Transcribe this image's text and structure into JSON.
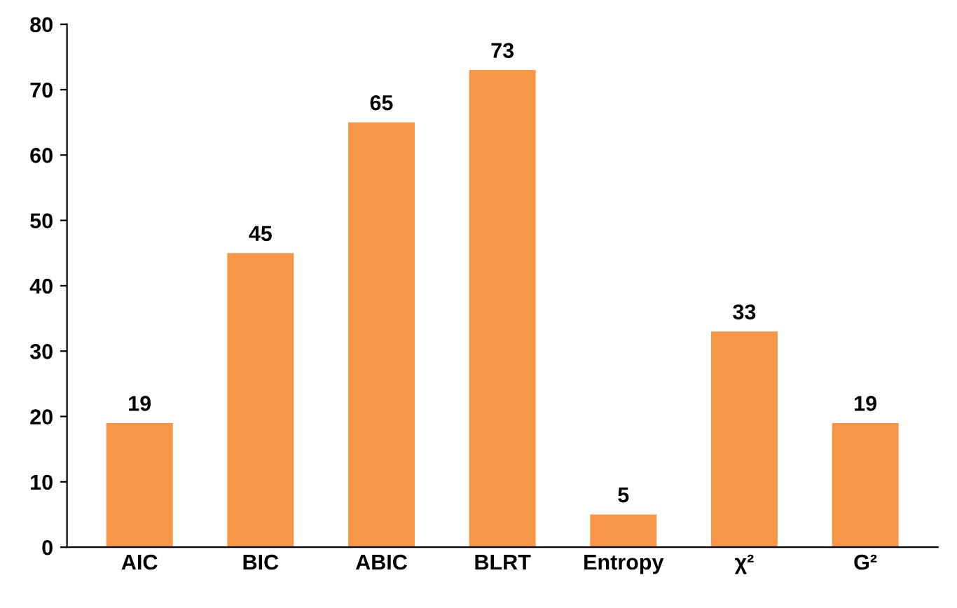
{
  "chart_data": {
    "type": "bar",
    "categories": [
      "AIC",
      "BIC",
      "ABIC",
      "BLRT",
      "Entropy",
      "χ²",
      "G²"
    ],
    "values": [
      19,
      45,
      65,
      73,
      5,
      33,
      19
    ],
    "color": "#f79646",
    "ylim": [
      0,
      80
    ],
    "yticks": [
      0,
      10,
      20,
      30,
      40,
      50,
      60,
      70,
      80
    ],
    "grid": false,
    "data_labels": true
  }
}
